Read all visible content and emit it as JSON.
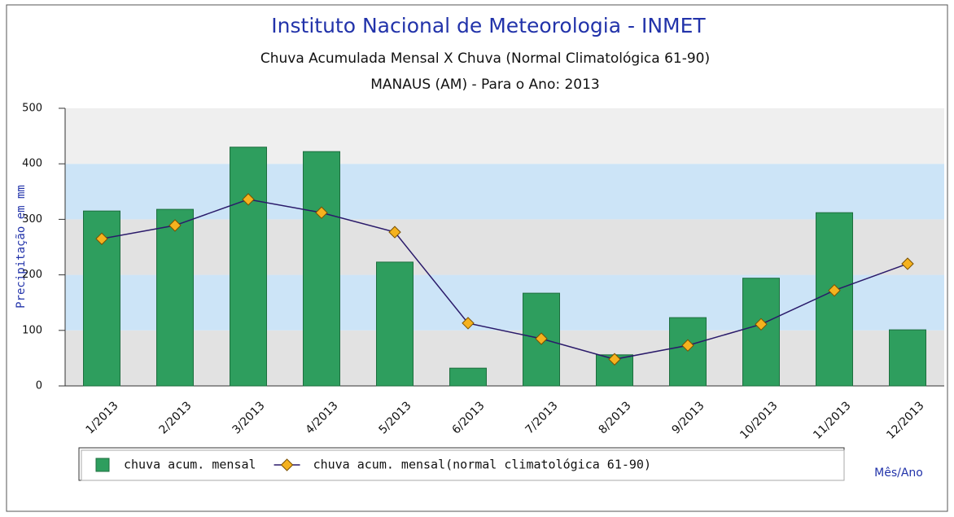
{
  "chart_data": {
    "type": "bar_line",
    "title": "Instituto Nacional de Meteorologia - INMET",
    "subtitles": [
      "Chuva Acumulada Mensal X Chuva (Normal Climatológica 61-90)",
      "MANAUS (AM) - Para o Ano: 2013"
    ],
    "y_label": "Precipitação em mm",
    "x_label": "Mês/Ano",
    "categories": [
      "1/2013",
      "2/2013",
      "3/2013",
      "4/2013",
      "5/2013",
      "6/2013",
      "7/2013",
      "8/2013",
      "9/2013",
      "10/2013",
      "11/2013",
      "12/2013"
    ],
    "series": [
      {
        "name": "chuva acum. mensal",
        "color": "#2e9e5e",
        "type": "bar",
        "values": [
          315,
          318,
          430,
          422,
          223,
          32,
          167,
          56,
          123,
          194,
          312,
          101
        ]
      },
      {
        "name": "chuva acum. mensal(normal climatológica 61-90)",
        "color": "#f5b21e",
        "type": "line",
        "values": [
          265,
          289,
          336,
          312,
          277,
          113,
          85,
          48,
          73,
          111,
          172,
          220
        ]
      }
    ],
    "ylim": [
      0,
      500
    ],
    "yticks": [
      0,
      100,
      200,
      300,
      400,
      500
    ]
  }
}
